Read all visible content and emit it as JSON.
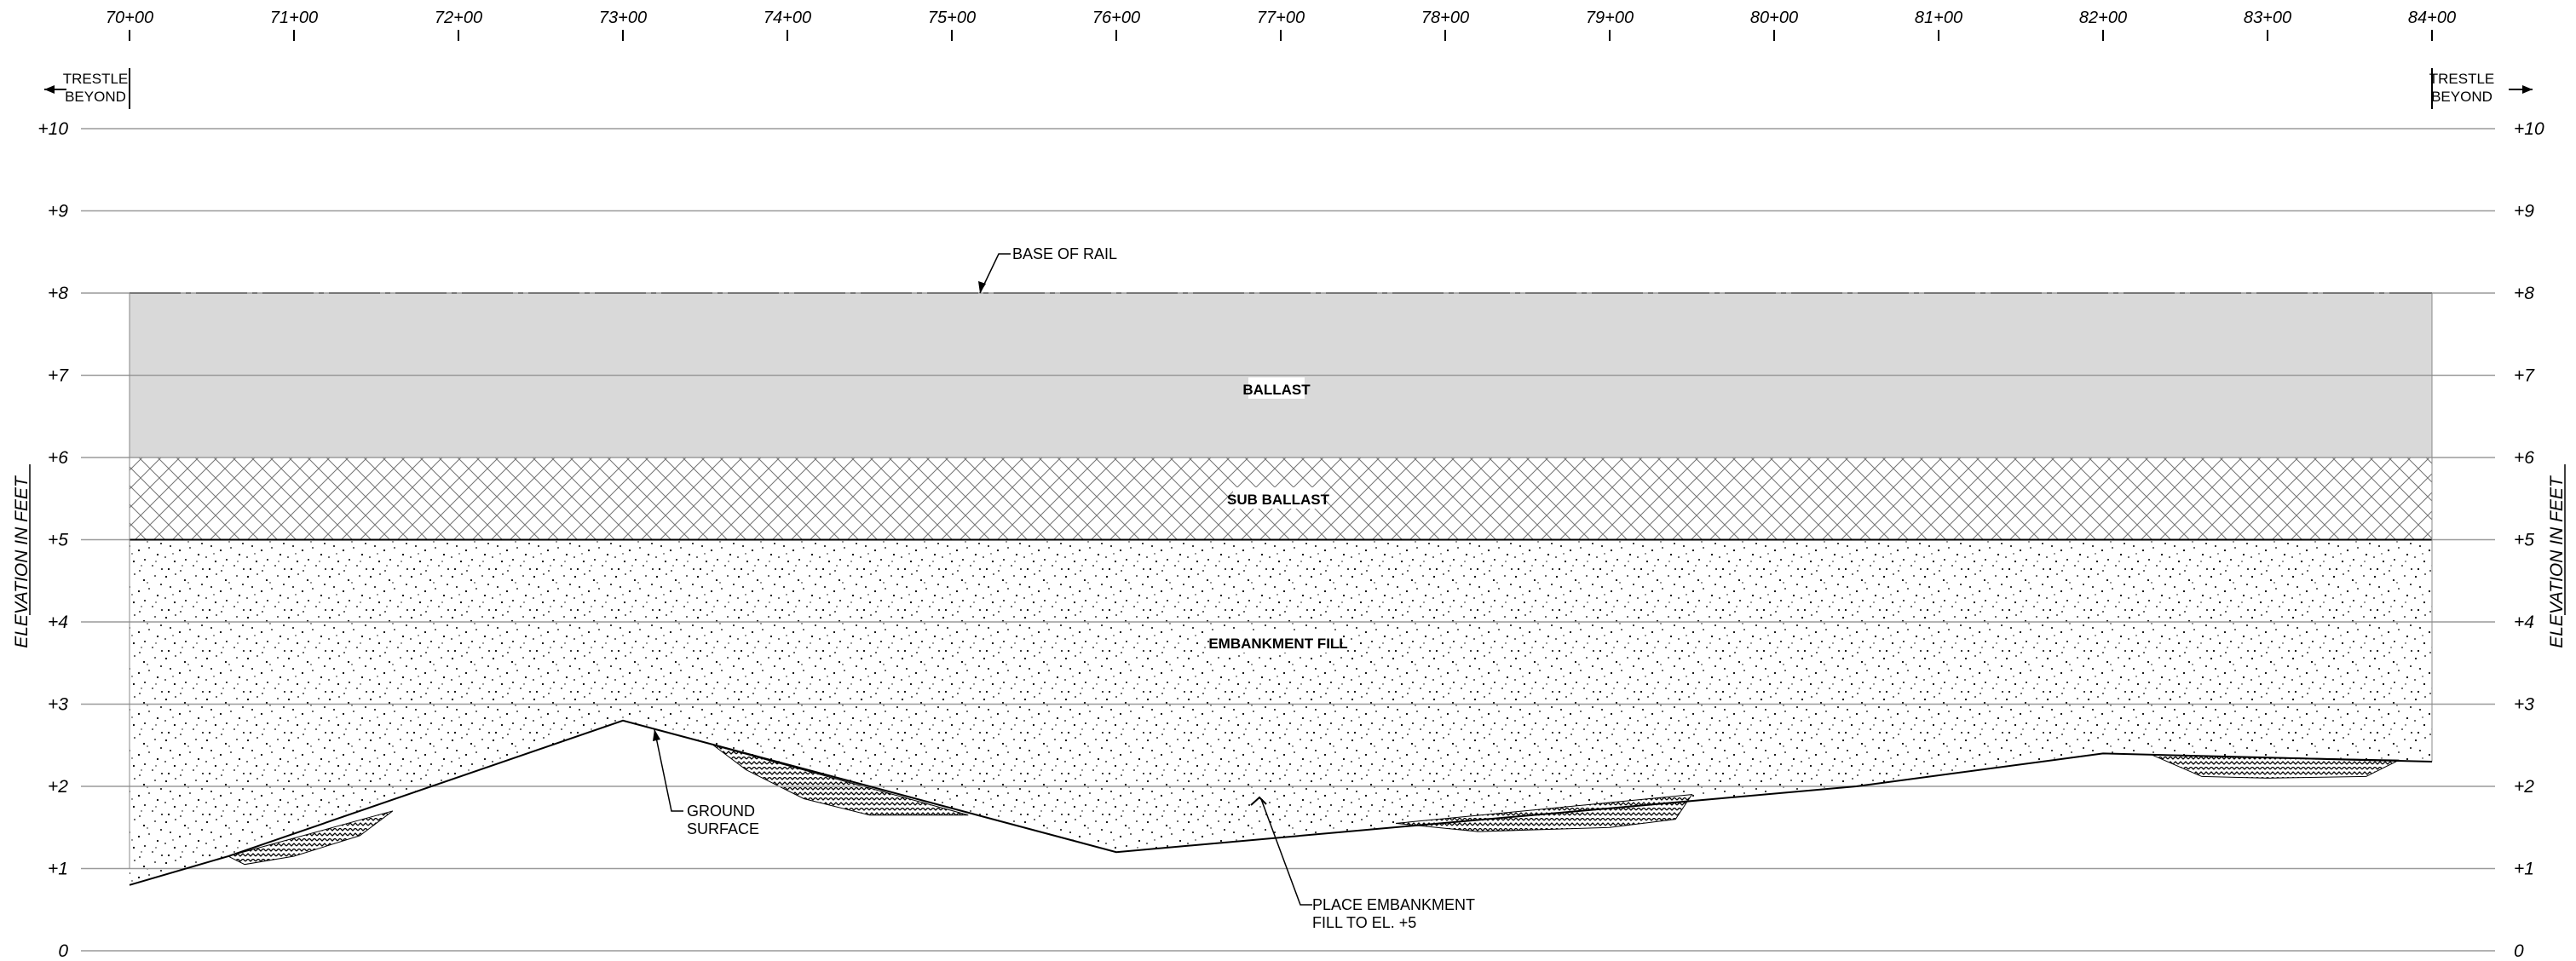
{
  "stations": [
    "70+00",
    "71+00",
    "72+00",
    "73+00",
    "74+00",
    "75+00",
    "76+00",
    "77+00",
    "78+00",
    "79+00",
    "80+00",
    "81+00",
    "82+00",
    "83+00",
    "84+00"
  ],
  "elevations": [
    "+10",
    "+9",
    "+8",
    "+7",
    "+6",
    "+5",
    "+4",
    "+3",
    "+2",
    "+1",
    "0"
  ],
  "axis": {
    "left_label": "ELEVATION IN FEET",
    "right_label": "ELEVATION IN FEET"
  },
  "trestle_left": {
    "line1": "TRESTLE",
    "line2": "BEYOND"
  },
  "trestle_right": {
    "line1": "TRESTLE",
    "line2": "BEYOND"
  },
  "layers": {
    "ballast": "BALLAST",
    "sub_ballast": "SUB BALLAST",
    "embankment": "EMBANKMENT FILL"
  },
  "annotations": {
    "base_of_rail": "BASE OF RAIL",
    "ground_surface_line1": "GROUND",
    "ground_surface_line2": "SURFACE",
    "place_fill_line1": "PLACE EMBANKMENT",
    "place_fill_line2": "FILL TO EL. +5"
  },
  "ground_profile": {
    "stations": [
      70,
      70.6,
      73,
      76,
      80.5,
      82,
      84
    ],
    "elevations": [
      0.8,
      1.15,
      2.8,
      1.2,
      2.0,
      2.4,
      2.3
    ]
  },
  "colors": {
    "ballast": "#d9d9d9",
    "gridline": "#9a9a9a",
    "ink": "#000000"
  }
}
